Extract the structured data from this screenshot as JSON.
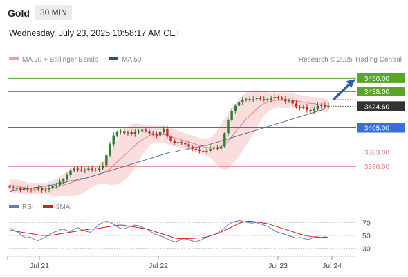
{
  "header": {
    "instrument": "Gold",
    "timeframe": "30 MIN",
    "datetime": "Wednesday, July 23, 2025 10:58:17 AM CET"
  },
  "legend": {
    "ma20": "MA 20 + Bollinger Bands",
    "ma50": "MA 50",
    "credit": "Research © 2025 Trading Central",
    "rsi": "RSI",
    "ma9": "9MA"
  },
  "colors": {
    "resistance": "#5aa626",
    "support": "#3a6fd8",
    "weak_level": "#e07a7a",
    "current": "#333333",
    "bull_candle": "#2e7d32",
    "bear_candle": "#c62828",
    "bollinger": "#f6b3b3",
    "ma20": "#e88080",
    "ma50": "#5a6f9a",
    "rsi": "#5b7bd5",
    "ma9": "#d42020",
    "arrow": "#2b5fa8"
  },
  "chart_data": [
    {
      "type": "candlestick",
      "x_labels": [
        "Jul 21",
        "Jul 22",
        "Jul 23",
        "Jul 24"
      ],
      "ylim": [
        3345,
        3460
      ],
      "levels": [
        {
          "price": 3450.0,
          "label": "3450.00",
          "kind": "resistance"
        },
        {
          "price": 3438.0,
          "label": "3438.00",
          "kind": "resistance"
        },
        {
          "price": 3424.6,
          "label": "3424.60",
          "kind": "current"
        },
        {
          "price": 3405.0,
          "label": "3405.00",
          "kind": "support"
        },
        {
          "price": 3383.0,
          "label": "3383.00",
          "kind": "weak"
        },
        {
          "price": 3370.0,
          "label": "3370.00",
          "kind": "weak"
        }
      ],
      "close": [
        3351,
        3350,
        3350,
        3349,
        3350,
        3349,
        3348,
        3349,
        3350,
        3348,
        3349,
        3350,
        3352,
        3353,
        3356,
        3358,
        3362,
        3366,
        3368,
        3367,
        3366,
        3367,
        3368,
        3367,
        3367,
        3368,
        3371,
        3380,
        3390,
        3398,
        3401,
        3402,
        3400,
        3401,
        3399,
        3401,
        3402,
        3403,
        3402,
        3400,
        3399,
        3398,
        3401,
        3404,
        3397,
        3393,
        3391,
        3392,
        3391,
        3390,
        3388,
        3386,
        3385,
        3384,
        3384,
        3384,
        3386,
        3387,
        3386,
        3388,
        3400,
        3412,
        3420,
        3425,
        3428,
        3430,
        3431,
        3430,
        3431,
        3432,
        3431,
        3431,
        3430,
        3432,
        3433,
        3432,
        3431,
        3429,
        3430,
        3427,
        3424,
        3423,
        3424,
        3421,
        3420,
        3422,
        3425,
        3426,
        3424,
        3425
      ],
      "ma20": [
        3353,
        3352,
        3352,
        3351,
        3351,
        3350,
        3350,
        3350,
        3350,
        3350,
        3350,
        3350,
        3350,
        3351,
        3352,
        3353,
        3354,
        3355,
        3356,
        3357,
        3358,
        3359,
        3360,
        3361,
        3362,
        3363,
        3364,
        3366,
        3368,
        3371,
        3374,
        3377,
        3380,
        3383,
        3386,
        3389,
        3392,
        3394,
        3396,
        3398,
        3399,
        3399,
        3399,
        3399,
        3398,
        3397,
        3396,
        3395,
        3394,
        3393,
        3392,
        3391,
        3390,
        3389,
        3388,
        3387,
        3387,
        3387,
        3387,
        3388,
        3390,
        3393,
        3397,
        3401,
        3405,
        3409,
        3413,
        3416,
        3419,
        3422,
        3425,
        3427,
        3428,
        3429,
        3430,
        3430,
        3430,
        3430,
        3430,
        3430,
        3429,
        3429,
        3428,
        3428,
        3427,
        3427,
        3426,
        3426,
        3425,
        3425
      ],
      "ma50": [
        3347,
        3348,
        3348,
        3349,
        3349,
        3350,
        3350,
        3351,
        3351,
        3352,
        3352,
        3353,
        3353,
        3354,
        3355,
        3355,
        3356,
        3357,
        3357,
        3358,
        3359,
        3359,
        3360,
        3361,
        3362,
        3363,
        3364,
        3365,
        3366,
        3367,
        3368,
        3369,
        3370,
        3371,
        3372,
        3373,
        3374,
        3375,
        3376,
        3377,
        3378,
        3379,
        3380,
        3381,
        3382,
        3383,
        3383,
        3384,
        3385,
        3385,
        3386,
        3387,
        3387,
        3388,
        3389,
        3389,
        3390,
        3391,
        3392,
        3393,
        3394,
        3395,
        3396,
        3397,
        3398,
        3399,
        3400,
        3401,
        3402,
        3403,
        3404,
        3405,
        3406,
        3407,
        3408,
        3409,
        3410,
        3411,
        3412,
        3413,
        3414,
        3415,
        3416,
        3417,
        3418,
        3419,
        3420,
        3421,
        3422,
        3422
      ],
      "bb_width": [
        6,
        6,
        6,
        6,
        6,
        5,
        5,
        5,
        5,
        5,
        5,
        6,
        7,
        8,
        9,
        10,
        11,
        12,
        13,
        13,
        13,
        12,
        11,
        10,
        9,
        9,
        10,
        12,
        15,
        18,
        20,
        22,
        23,
        23,
        22,
        20,
        17,
        14,
        11,
        9,
        8,
        8,
        8,
        8,
        8,
        8,
        8,
        7,
        7,
        7,
        7,
        7,
        7,
        7,
        7,
        8,
        9,
        12,
        16,
        20,
        23,
        25,
        26,
        26,
        26,
        25,
        24,
        22,
        20,
        17,
        14,
        11,
        9,
        8,
        7,
        7,
        7,
        7,
        7,
        7,
        6,
        6,
        6,
        6,
        6,
        6,
        6,
        6,
        6,
        6
      ]
    },
    {
      "type": "line",
      "name": "RSI",
      "ylim": [
        20,
        80
      ],
      "ticks": [
        70,
        50,
        30
      ],
      "tick_labels": [
        "70",
        "50",
        "30"
      ],
      "rsi": [
        62,
        58,
        55,
        50,
        46,
        48,
        44,
        42,
        45,
        48,
        52,
        55,
        57,
        60,
        58,
        56,
        60,
        62,
        58,
        56,
        55,
        60,
        66,
        70,
        72,
        70,
        66,
        62,
        60,
        62,
        64,
        66,
        65,
        62,
        60,
        56,
        52,
        50,
        48,
        45,
        42,
        40,
        42,
        46,
        44,
        42,
        40,
        42,
        45,
        48,
        50,
        52,
        56,
        60,
        66,
        70,
        72,
        73,
        71,
        70,
        69,
        70,
        68,
        66,
        64,
        60,
        56,
        54,
        52,
        50,
        48,
        46,
        47,
        45,
        44,
        46,
        47,
        46,
        48,
        47
      ],
      "ma9": [
        58,
        57,
        56,
        55,
        54,
        53,
        52,
        51,
        50,
        50,
        50,
        51,
        52,
        53,
        54,
        55,
        56,
        57,
        58,
        59,
        60,
        60,
        61,
        62,
        63,
        64,
        65,
        66,
        66,
        65,
        64,
        63,
        62,
        61,
        60,
        58,
        56,
        54,
        52,
        50,
        48,
        46,
        45,
        45,
        45,
        45,
        46,
        46,
        47,
        48,
        50,
        52,
        54,
        57,
        60,
        63,
        66,
        69,
        71,
        72,
        72,
        71,
        70,
        69,
        68,
        66,
        64,
        62,
        60,
        58,
        56,
        54,
        52,
        50,
        49,
        48,
        48,
        47,
        47,
        47
      ]
    }
  ]
}
